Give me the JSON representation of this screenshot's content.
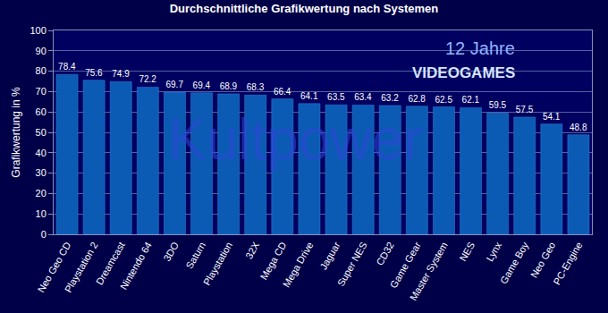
{
  "chart_data": {
    "type": "bar",
    "title": "Durchschnittliche Grafikwertung nach Systemen",
    "y_label": "Grafikwertung in %",
    "categories": [
      "Neo Geo CD",
      "Playstation 2",
      "Dreamcast",
      "Nintendo 64",
      "3DO",
      "Saturn",
      "Playstation",
      "32X",
      "Mega CD",
      "Mega Drive",
      "Jaguar",
      "Super NES",
      "CD32",
      "Game Gear",
      "Master System",
      "NES",
      "Lynx",
      "Game Boy",
      "Neo Geo",
      "PC-Engine"
    ],
    "values": [
      78.4,
      75.6,
      74.9,
      72.2,
      69.7,
      69.4,
      68.9,
      68.3,
      66.4,
      64.1,
      63.5,
      63.4,
      63.2,
      62.8,
      62.5,
      62.1,
      59.5,
      57.5,
      54.1,
      48.8
    ],
    "color": "#0b5bb5",
    "ylim": [
      0,
      100
    ],
    "yticks": [
      0,
      10,
      20,
      30,
      40,
      50,
      60,
      70,
      80,
      90,
      100
    ],
    "grid": true,
    "data_labels": true,
    "annotations": [
      "12 Jahre",
      "VIDEOGAMES",
      "Kultpower"
    ]
  }
}
